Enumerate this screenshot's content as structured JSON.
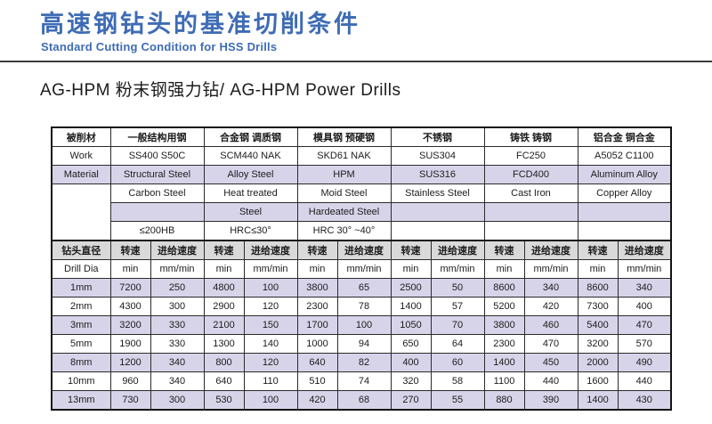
{
  "header": {
    "title_zh": "高速钢钻头的基准切削条件",
    "title_en": "Standard Cutting Condition for HSS Drills",
    "section_title": "AG-HPM 粉末钢强力钻/ AG-HPM  Power Drills"
  },
  "colors": {
    "accent_blue": "#3e6cb5",
    "divider_gray": "#3c3c3c",
    "row_lavender": "#d7d4ea",
    "header_gray": "#d9d9d9",
    "border_black": "#141414"
  },
  "table": {
    "corner": {
      "zh": "被削材",
      "en1": "Work",
      "en2": "Material"
    },
    "groups": [
      {
        "header_zh": "一般结构用钢",
        "line1": "SS400 S50C",
        "line2": "Structural Steel",
        "line3": "Carbon Steel",
        "line4": "",
        "hardness": "≤200HB"
      },
      {
        "header_zh": "合金钢 调质钢",
        "line1": "SCM440 NAK",
        "line2": "Alloy Steel",
        "line3": "Heat treated",
        "line4": "Steel",
        "hardness": "HRC≤30°"
      },
      {
        "header_zh": "模具钢 预硬钢",
        "line1": "SKD61 NAK",
        "line2": "HPM",
        "line3": "Moid Steel",
        "line4": "Hardeated Steel",
        "hardness": "HRC 30° ~40°"
      },
      {
        "header_zh": "不锈钢",
        "line1": "SUS304",
        "line2": "SUS316",
        "line3": "Stainless Steel",
        "line4": "",
        "hardness": ""
      },
      {
        "header_zh": "铸铁 铸钢",
        "line1": "FC250",
        "line2": "FCD400",
        "line3": "Cast Iron",
        "line4": "",
        "hardness": ""
      },
      {
        "header_zh": "铝合金 铜合金",
        "line1": "A5052  C1100",
        "line2": "Aluminum Alloy",
        "line3": "Copper  Alloy",
        "line4": "",
        "hardness": ""
      }
    ],
    "speed_header": {
      "drill_zh": "钻头直径",
      "drill_en": "Drill Dia",
      "speed_zh": "转速",
      "feed_zh": "进给速度",
      "speed_unit": "min",
      "feed_unit": "mm/min"
    },
    "data_rows": [
      {
        "dia": "1mm",
        "values": [
          7200,
          250,
          4800,
          100,
          3800,
          65,
          2500,
          50,
          8600,
          340,
          8600,
          340
        ]
      },
      {
        "dia": "2mm",
        "values": [
          4300,
          300,
          2900,
          120,
          2300,
          78,
          1400,
          57,
          5200,
          420,
          7300,
          400
        ]
      },
      {
        "dia": "3mm",
        "values": [
          3200,
          330,
          2100,
          150,
          1700,
          100,
          1050,
          70,
          3800,
          460,
          5400,
          470
        ]
      },
      {
        "dia": "5mm",
        "values": [
          1900,
          330,
          1300,
          140,
          1000,
          94,
          650,
          64,
          2300,
          470,
          3200,
          570
        ]
      },
      {
        "dia": "8mm",
        "values": [
          1200,
          340,
          800,
          120,
          640,
          82,
          400,
          60,
          1400,
          450,
          2000,
          490
        ]
      },
      {
        "dia": "10mm",
        "values": [
          960,
          340,
          640,
          110,
          510,
          74,
          320,
          58,
          1100,
          440,
          1600,
          440
        ]
      },
      {
        "dia": "13mm",
        "values": [
          730,
          300,
          530,
          100,
          420,
          68,
          270,
          55,
          880,
          390,
          1400,
          430
        ]
      }
    ]
  }
}
